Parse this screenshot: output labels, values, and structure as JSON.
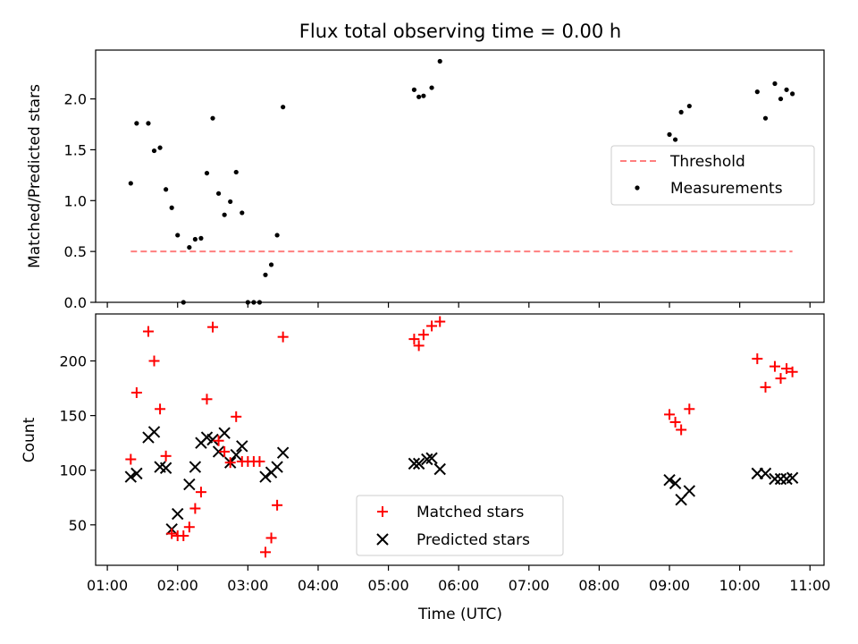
{
  "chart_data": [
    {
      "type": "scatter",
      "title": "Flux total observing time = 0.00 h",
      "xlabel": "",
      "ylabel": "Matched/Predicted stars",
      "xlim": [
        "00:50",
        "11:12"
      ],
      "ylim": [
        0,
        2.48
      ],
      "yticks": [
        "0.0",
        "0.5",
        "1.0",
        "1.5",
        "2.0"
      ],
      "legend": {
        "placement": "right",
        "entries": [
          "Threshold",
          "Measurements"
        ]
      },
      "threshold": {
        "name": "Threshold",
        "value": 0.5,
        "x_start": "01:20",
        "x_end": "10:45",
        "color": "#ff7f7f"
      },
      "series": [
        {
          "name": "Measurements",
          "color": "#000000",
          "points": [
            [
              "01:20",
              1.17
            ],
            [
              "01:25",
              1.76
            ],
            [
              "01:35",
              1.76
            ],
            [
              "01:40",
              1.49
            ],
            [
              "01:45",
              1.52
            ],
            [
              "01:50",
              1.11
            ],
            [
              "01:55",
              0.93
            ],
            [
              "02:00",
              0.66
            ],
            [
              "02:05",
              0.0
            ],
            [
              "02:10",
              0.54
            ],
            [
              "02:15",
              0.62
            ],
            [
              "02:20",
              0.63
            ],
            [
              "02:25",
              1.27
            ],
            [
              "02:30",
              1.81
            ],
            [
              "02:35",
              1.07
            ],
            [
              "02:40",
              0.86
            ],
            [
              "02:45",
              0.99
            ],
            [
              "02:50",
              1.28
            ],
            [
              "02:55",
              0.88
            ],
            [
              "03:00",
              0.0
            ],
            [
              "03:05",
              0.0
            ],
            [
              "03:10",
              0.0
            ],
            [
              "03:15",
              0.27
            ],
            [
              "03:20",
              0.37
            ],
            [
              "03:25",
              0.66
            ],
            [
              "03:30",
              1.92
            ],
            [
              "05:22",
              2.09
            ],
            [
              "05:26",
              2.02
            ],
            [
              "05:30",
              2.03
            ],
            [
              "05:37",
              2.11
            ],
            [
              "05:44",
              2.37
            ],
            [
              "09:00",
              1.65
            ],
            [
              "09:05",
              1.6
            ],
            [
              "09:10",
              1.87
            ],
            [
              "09:17",
              1.93
            ],
            [
              "10:15",
              2.07
            ],
            [
              "10:22",
              1.81
            ],
            [
              "10:30",
              2.15
            ],
            [
              "10:35",
              2.0
            ],
            [
              "10:40",
              2.09
            ],
            [
              "10:45",
              2.05
            ]
          ]
        }
      ]
    },
    {
      "type": "scatter",
      "xlabel": "Time (UTC)",
      "ylabel": "Count",
      "xlim": [
        "00:50",
        "11:12"
      ],
      "ylim": [
        13,
        243
      ],
      "yticks": [
        "50",
        "100",
        "150",
        "200"
      ],
      "xticks": [
        "01:00",
        "02:00",
        "03:00",
        "04:00",
        "05:00",
        "06:00",
        "07:00",
        "08:00",
        "09:00",
        "10:00",
        "11:00"
      ],
      "legend": {
        "placement": "bottom-center",
        "entries": [
          "Matched stars",
          "Predicted stars"
        ]
      },
      "series": [
        {
          "name": "Matched stars",
          "color": "#ff0000",
          "marker": "+",
          "points": [
            [
              "01:20",
              110
            ],
            [
              "01:25",
              171
            ],
            [
              "01:35",
              227
            ],
            [
              "01:40",
              200
            ],
            [
              "01:45",
              156
            ],
            [
              "01:50",
              113
            ],
            [
              "01:55",
              42
            ],
            [
              "02:00",
              40
            ],
            [
              "02:05",
              40
            ],
            [
              "02:10",
              48
            ],
            [
              "02:15",
              65
            ],
            [
              "02:20",
              80
            ],
            [
              "02:25",
              165
            ],
            [
              "02:30",
              231
            ],
            [
              "02:35",
              127
            ],
            [
              "02:40",
              117
            ],
            [
              "02:45",
              107
            ],
            [
              "02:50",
              149
            ],
            [
              "02:55",
              108
            ],
            [
              "03:00",
              108
            ],
            [
              "03:05",
              108
            ],
            [
              "03:10",
              108
            ],
            [
              "03:15",
              25
            ],
            [
              "03:20",
              38
            ],
            [
              "03:25",
              68
            ],
            [
              "03:30",
              222
            ],
            [
              "05:22",
              220
            ],
            [
              "05:26",
              214
            ],
            [
              "05:30",
              224
            ],
            [
              "05:37",
              232
            ],
            [
              "05:44",
              236
            ],
            [
              "09:00",
              151
            ],
            [
              "09:05",
              144
            ],
            [
              "09:10",
              137
            ],
            [
              "09:17",
              156
            ],
            [
              "10:15",
              202
            ],
            [
              "10:22",
              176
            ],
            [
              "10:30",
              195
            ],
            [
              "10:35",
              184
            ],
            [
              "10:40",
              193
            ],
            [
              "10:45",
              190
            ]
          ]
        },
        {
          "name": "Predicted stars",
          "color": "#000000",
          "marker": "x",
          "points": [
            [
              "01:20",
              94
            ],
            [
              "01:25",
              97
            ],
            [
              "01:35",
              130
            ],
            [
              "01:40",
              135
            ],
            [
              "01:45",
              103
            ],
            [
              "01:50",
              102
            ],
            [
              "01:55",
              46
            ],
            [
              "02:00",
              60
            ],
            [
              "02:10",
              87
            ],
            [
              "02:15",
              103
            ],
            [
              "02:20",
              125
            ],
            [
              "02:25",
              130
            ],
            [
              "02:30",
              128
            ],
            [
              "02:35",
              117
            ],
            [
              "02:40",
              134
            ],
            [
              "02:45",
              107
            ],
            [
              "02:50",
              114
            ],
            [
              "02:55",
              122
            ],
            [
              "03:15",
              94
            ],
            [
              "03:20",
              98
            ],
            [
              "03:25",
              103
            ],
            [
              "03:30",
              116
            ],
            [
              "05:22",
              106
            ],
            [
              "05:26",
              106
            ],
            [
              "05:33",
              110
            ],
            [
              "05:37",
              111
            ],
            [
              "05:44",
              101
            ],
            [
              "09:00",
              91
            ],
            [
              "09:05",
              88
            ],
            [
              "09:10",
              73
            ],
            [
              "09:17",
              81
            ],
            [
              "10:15",
              97
            ],
            [
              "10:22",
              97
            ],
            [
              "10:30",
              92
            ],
            [
              "10:35",
              92
            ],
            [
              "10:40",
              92
            ],
            [
              "10:45",
              93
            ]
          ]
        }
      ]
    }
  ]
}
